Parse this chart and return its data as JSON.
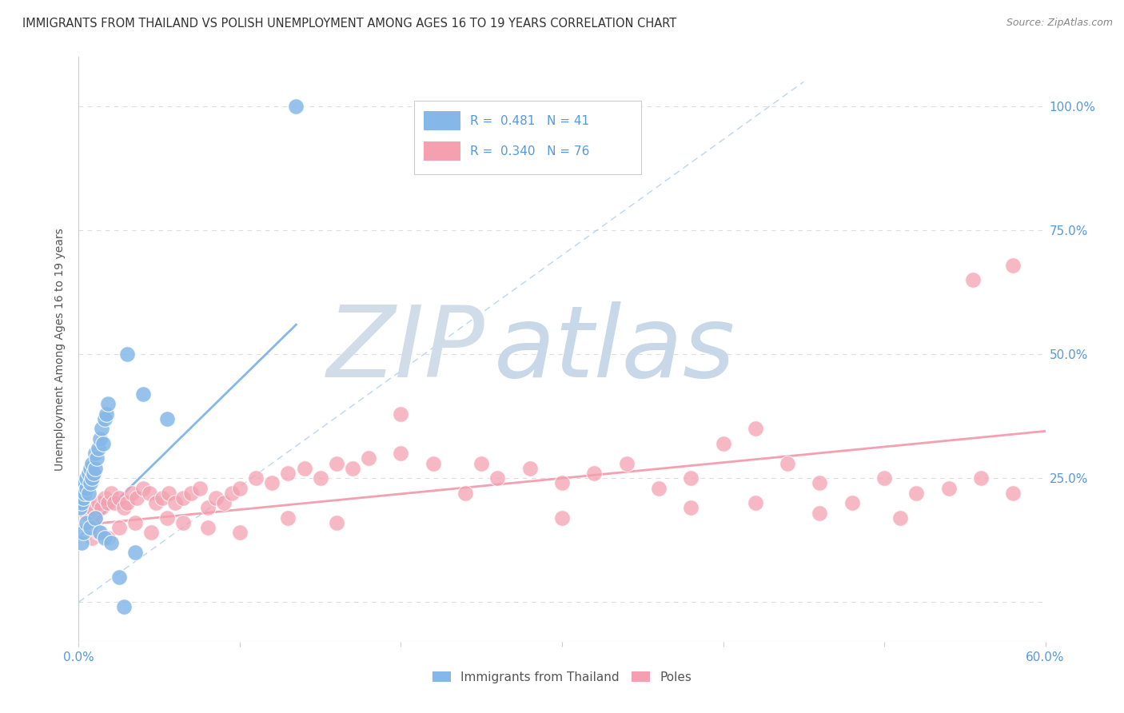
{
  "title": "IMMIGRANTS FROM THAILAND VS POLISH UNEMPLOYMENT AMONG AGES 16 TO 19 YEARS CORRELATION CHART",
  "source": "Source: ZipAtlas.com",
  "ylabel": "Unemployment Among Ages 16 to 19 years",
  "xlim": [
    0.0,
    0.6
  ],
  "ylim": [
    -0.08,
    1.1
  ],
  "yticks": [
    0.0,
    0.25,
    0.5,
    0.75,
    1.0
  ],
  "ytick_labels": [
    "",
    "25.0%",
    "50.0%",
    "75.0%",
    "100.0%"
  ],
  "xticks": [
    0.0,
    0.1,
    0.2,
    0.3,
    0.4,
    0.5,
    0.6
  ],
  "xtick_labels": [
    "0.0%",
    "",
    "",
    "",
    "",
    "",
    "60.0%"
  ],
  "blue_R": 0.481,
  "blue_N": 41,
  "pink_R": 0.34,
  "pink_N": 76,
  "blue_color": "#85B8E8",
  "pink_color": "#F4A0B0",
  "blue_scatter_x": [
    0.001,
    0.002,
    0.002,
    0.003,
    0.003,
    0.004,
    0.004,
    0.005,
    0.005,
    0.006,
    0.006,
    0.007,
    0.007,
    0.008,
    0.008,
    0.009,
    0.01,
    0.01,
    0.011,
    0.012,
    0.013,
    0.014,
    0.015,
    0.016,
    0.017,
    0.018,
    0.002,
    0.003,
    0.005,
    0.007,
    0.01,
    0.013,
    0.016,
    0.02,
    0.025,
    0.028,
    0.035,
    0.04,
    0.055,
    0.135,
    0.03
  ],
  "blue_scatter_y": [
    0.19,
    0.2,
    0.22,
    0.21,
    0.23,
    0.22,
    0.24,
    0.23,
    0.25,
    0.22,
    0.26,
    0.24,
    0.27,
    0.25,
    0.28,
    0.26,
    0.27,
    0.3,
    0.29,
    0.31,
    0.33,
    0.35,
    0.32,
    0.37,
    0.38,
    0.4,
    0.12,
    0.14,
    0.16,
    0.15,
    0.17,
    0.14,
    0.13,
    0.12,
    0.05,
    -0.01,
    0.1,
    0.42,
    0.37,
    1.0,
    0.5
  ],
  "pink_scatter_x": [
    0.005,
    0.008,
    0.01,
    0.012,
    0.014,
    0.016,
    0.018,
    0.02,
    0.022,
    0.025,
    0.028,
    0.03,
    0.033,
    0.036,
    0.04,
    0.044,
    0.048,
    0.052,
    0.056,
    0.06,
    0.065,
    0.07,
    0.075,
    0.08,
    0.085,
    0.09,
    0.095,
    0.1,
    0.11,
    0.12,
    0.13,
    0.14,
    0.15,
    0.16,
    0.17,
    0.18,
    0.2,
    0.22,
    0.24,
    0.26,
    0.28,
    0.3,
    0.32,
    0.34,
    0.36,
    0.38,
    0.4,
    0.42,
    0.44,
    0.46,
    0.48,
    0.5,
    0.52,
    0.54,
    0.56,
    0.58,
    0.008,
    0.012,
    0.018,
    0.025,
    0.035,
    0.045,
    0.055,
    0.065,
    0.08,
    0.1,
    0.13,
    0.16,
    0.2,
    0.25,
    0.3,
    0.38,
    0.42,
    0.46,
    0.51,
    0.555,
    0.58
  ],
  "pink_scatter_y": [
    0.18,
    0.19,
    0.17,
    0.2,
    0.19,
    0.21,
    0.2,
    0.22,
    0.2,
    0.21,
    0.19,
    0.2,
    0.22,
    0.21,
    0.23,
    0.22,
    0.2,
    0.21,
    0.22,
    0.2,
    0.21,
    0.22,
    0.23,
    0.19,
    0.21,
    0.2,
    0.22,
    0.23,
    0.25,
    0.24,
    0.26,
    0.27,
    0.25,
    0.28,
    0.27,
    0.29,
    0.3,
    0.28,
    0.22,
    0.25,
    0.27,
    0.24,
    0.26,
    0.28,
    0.23,
    0.25,
    0.32,
    0.2,
    0.28,
    0.24,
    0.2,
    0.25,
    0.22,
    0.23,
    0.25,
    0.22,
    0.13,
    0.14,
    0.13,
    0.15,
    0.16,
    0.14,
    0.17,
    0.16,
    0.15,
    0.14,
    0.17,
    0.16,
    0.38,
    0.28,
    0.17,
    0.19,
    0.35,
    0.18,
    0.17,
    0.65,
    0.68
  ],
  "blue_line_x": [
    0.0,
    0.135
  ],
  "blue_line_y": [
    0.13,
    0.56
  ],
  "pink_line_x": [
    0.0,
    0.6
  ],
  "pink_line_y": [
    0.155,
    0.345
  ],
  "diag_line_x": [
    0.0,
    0.45
  ],
  "diag_line_y": [
    0.0,
    1.05
  ],
  "watermark_zip": "ZIP",
  "watermark_atlas": "atlas",
  "watermark_color_zip": "#D0DCE8",
  "watermark_color_atlas": "#C8D8E8",
  "background_color": "#FFFFFF",
  "grid_color": "#DDDDDD",
  "title_color": "#333333",
  "axis_label_color": "#555555",
  "tick_color": "#5599DD",
  "legend_label1": "Immigrants from Thailand",
  "legend_label2": "Poles"
}
